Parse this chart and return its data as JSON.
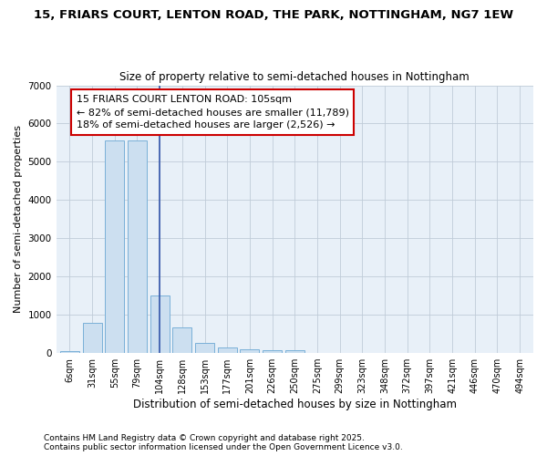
{
  "title1": "15, FRIARS COURT, LENTON ROAD, THE PARK, NOTTINGHAM, NG7 1EW",
  "title2": "Size of property relative to semi-detached houses in Nottingham",
  "xlabel": "Distribution of semi-detached houses by size in Nottingham",
  "ylabel": "Number of semi-detached properties",
  "categories": [
    "6sqm",
    "31sqm",
    "55sqm",
    "79sqm",
    "104sqm",
    "128sqm",
    "153sqm",
    "177sqm",
    "201sqm",
    "226sqm",
    "250sqm",
    "275sqm",
    "299sqm",
    "323sqm",
    "348sqm",
    "372sqm",
    "397sqm",
    "421sqm",
    "446sqm",
    "470sqm",
    "494sqm"
  ],
  "values": [
    60,
    800,
    5550,
    5550,
    1500,
    680,
    270,
    150,
    90,
    70,
    70,
    0,
    0,
    0,
    0,
    0,
    0,
    0,
    0,
    0,
    0
  ],
  "bar_color": "#ccdff0",
  "bar_edge_color": "#7ab0d8",
  "highlight_bar_index": 4,
  "highlight_line_color": "#3355aa",
  "annotation_text": "15 FRIARS COURT LENTON ROAD: 105sqm\n← 82% of semi-detached houses are smaller (11,789)\n18% of semi-detached houses are larger (2,526) →",
  "annotation_box_color": "#ffffff",
  "annotation_box_edge_color": "#cc0000",
  "ylim": [
    0,
    7000
  ],
  "yticks": [
    0,
    1000,
    2000,
    3000,
    4000,
    5000,
    6000,
    7000
  ],
  "footer1": "Contains HM Land Registry data © Crown copyright and database right 2025.",
  "footer2": "Contains public sector information licensed under the Open Government Licence v3.0.",
  "bg_color": "#ffffff",
  "plot_bg_color": "#e8f0f8",
  "title1_fontsize": 9.5,
  "title2_fontsize": 8.5,
  "tick_fontsize": 7,
  "ylabel_fontsize": 8,
  "xlabel_fontsize": 8.5,
  "footer_fontsize": 6.5,
  "annot_fontsize": 8
}
